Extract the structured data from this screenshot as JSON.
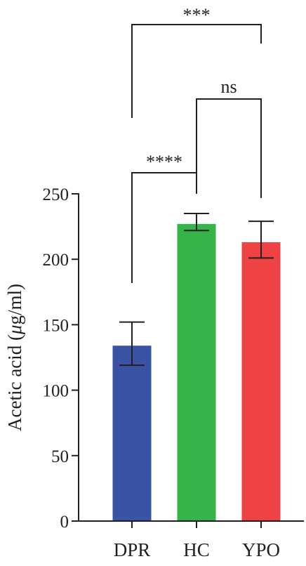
{
  "chart_data": {
    "type": "bar",
    "title": "",
    "xlabel": "",
    "ylabel_parts": [
      "Acetic acid (",
      "μ",
      "g/ml)"
    ],
    "categories": [
      "DPR",
      "HC",
      "YPO"
    ],
    "values": [
      134,
      227,
      213
    ],
    "error_low": [
      119,
      222,
      201
    ],
    "error_high": [
      152,
      235,
      229
    ],
    "colors": [
      "#3b53a4",
      "#35b44a",
      "#ee4245"
    ],
    "ylim": [
      0,
      250
    ],
    "yticks": [
      0,
      50,
      100,
      150,
      200,
      250
    ],
    "grid": false,
    "significance": [
      {
        "from": 0,
        "to": 1,
        "label": "****"
      },
      {
        "from": 1,
        "to": 2,
        "label": "ns"
      },
      {
        "from": 0,
        "to": 2,
        "label": "***"
      }
    ]
  }
}
